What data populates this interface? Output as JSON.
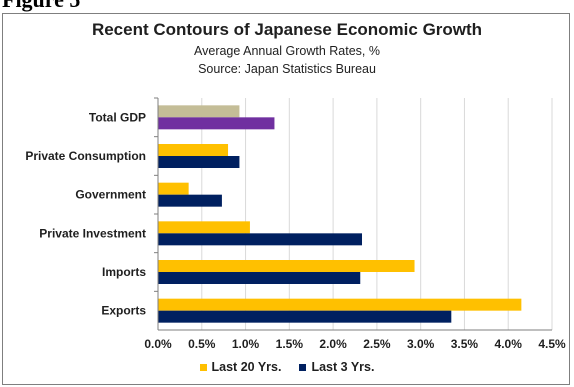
{
  "page_fragment": "Figure 5",
  "colors": {
    "last20": "#FFC000",
    "last3": "#002060",
    "gdp_last20": "#C4BD97",
    "gdp_last3": "#7030A0",
    "grid": "#d9d9d9",
    "axis": "#7f7f7f"
  },
  "chart_data": {
    "type": "bar",
    "orientation": "horizontal",
    "title": "Recent Contours of Japanese Economic Growth",
    "subtitle": "Average Annual Growth Rates, %",
    "source": "Source:  Japan Statistics Bureau",
    "categories": [
      "Total GDP",
      "Private Consumption",
      "Government",
      "Private Investment",
      "Imports",
      "Exports"
    ],
    "series": [
      {
        "name": "Last 20 Yrs.",
        "values": [
          0.93,
          0.8,
          0.35,
          1.05,
          2.93,
          4.15
        ]
      },
      {
        "name": "Last 3 Yrs.",
        "values": [
          1.33,
          0.93,
          0.73,
          2.33,
          2.31,
          3.35
        ]
      }
    ],
    "xlim": [
      0,
      4.5
    ],
    "xticks": [
      "0.0%",
      "0.5%",
      "1.0%",
      "1.5%",
      "2.0%",
      "2.5%",
      "3.0%",
      "3.5%",
      "4.0%",
      "4.5%"
    ],
    "grid": true,
    "legend_position": "bottom"
  }
}
